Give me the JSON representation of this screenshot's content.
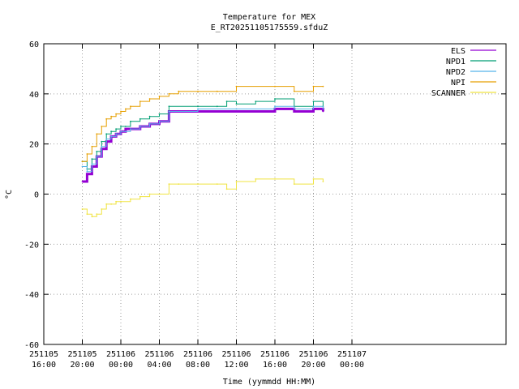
{
  "chart_data": {
    "type": "line",
    "title": "Temperature for MEX",
    "subtitle": "E_RT20251105175559.sfduZ",
    "xlabel": "Time (yymmdd HH:MM)",
    "ylabel": "°C",
    "ylim": [
      -60,
      60
    ],
    "yticks": [
      -60,
      -40,
      -20,
      0,
      20,
      40,
      60
    ],
    "xlim_hours": [
      16,
      64
    ],
    "xticks": [
      {
        "h": 16,
        "date": "251105",
        "time": "16:00"
      },
      {
        "h": 20,
        "date": "251105",
        "time": "20:00"
      },
      {
        "h": 24,
        "date": "251106",
        "time": "00:00"
      },
      {
        "h": 28,
        "date": "251106",
        "time": "04:00"
      },
      {
        "h": 32,
        "date": "251106",
        "time": "08:00"
      },
      {
        "h": 36,
        "date": "251106",
        "time": "12:00"
      },
      {
        "h": 40,
        "date": "251106",
        "time": "16:00"
      },
      {
        "h": 44,
        "date": "251106",
        "time": "20:00"
      },
      {
        "h": 48,
        "date": "251107",
        "time": "00:00"
      }
    ],
    "grid": true,
    "legend_position": "top-right",
    "series": [
      {
        "name": "ELS",
        "color": "#9400d3",
        "width": 3,
        "x": [
          "251105 20:00",
          "251105 20:30",
          "251105 21:00",
          "251105 21:30",
          "251105 22:00",
          "251105 22:30",
          "251105 23:00",
          "251105 23:30",
          "251106 00:00",
          "251106 00:30",
          "251106 01:00",
          "251106 02:00",
          "251106 03:00",
          "251106 04:00",
          "251106 05:00",
          "251106 08:00",
          "251106 12:00",
          "251106 16:00",
          "251106 18:00",
          "251106 20:00",
          "251106 21:00"
        ],
        "values": [
          5,
          8,
          11,
          15,
          18,
          21,
          23,
          24,
          25,
          26,
          26,
          27,
          28,
          29,
          33,
          33,
          33,
          34,
          33,
          34,
          33
        ]
      },
      {
        "name": "NPD1",
        "color": "#009e73",
        "width": 1,
        "x": [
          "251105 20:00",
          "251105 20:30",
          "251105 21:00",
          "251105 21:30",
          "251105 22:00",
          "251105 22:30",
          "251105 23:00",
          "251105 23:30",
          "251106 00:00",
          "251106 00:30",
          "251106 01:00",
          "251106 02:00",
          "251106 03:00",
          "251106 04:00",
          "251106 05:00",
          "251106 08:00",
          "251106 10:00",
          "251106 11:00",
          "251106 12:00",
          "251106 14:00",
          "251106 16:00",
          "251106 18:00",
          "251106 20:00",
          "251106 21:00"
        ],
        "values": [
          13,
          10,
          14,
          17,
          21,
          24,
          25,
          26,
          27,
          27,
          29,
          30,
          31,
          32,
          35,
          35,
          35,
          37,
          36,
          37,
          38,
          35,
          37,
          35
        ]
      },
      {
        "name": "NPD2",
        "color": "#56b4e9",
        "width": 1,
        "x": [
          "251105 20:00",
          "251105 20:30",
          "251105 21:00",
          "251105 21:30",
          "251105 22:00",
          "251105 22:30",
          "251105 23:00",
          "251105 23:30",
          "251106 00:00",
          "251106 00:30",
          "251106 01:00",
          "251106 02:00",
          "251106 03:00",
          "251106 04:00",
          "251106 05:00",
          "251106 08:00",
          "251106 12:00",
          "251106 16:00",
          "251106 18:00",
          "251106 20:00",
          "251106 21:00"
        ],
        "values": [
          11,
          9,
          12,
          15,
          19,
          22,
          23,
          24,
          25,
          25,
          26,
          27,
          28,
          29,
          33,
          34,
          34,
          35,
          34,
          35,
          34
        ]
      },
      {
        "name": "NPI",
        "color": "#e69f00",
        "width": 1,
        "x": [
          "251105 20:00",
          "251105 20:30",
          "251105 21:00",
          "251105 21:30",
          "251105 22:00",
          "251105 22:30",
          "251105 23:00",
          "251105 23:30",
          "251106 00:00",
          "251106 00:30",
          "251106 01:00",
          "251106 02:00",
          "251106 03:00",
          "251106 04:00",
          "251106 05:00",
          "251106 06:00",
          "251106 08:00",
          "251106 10:00",
          "251106 12:00",
          "251106 16:00",
          "251106 18:00",
          "251106 20:00",
          "251106 21:00"
        ],
        "values": [
          13,
          16,
          19,
          24,
          27,
          30,
          31,
          32,
          33,
          34,
          35,
          37,
          38,
          39,
          40,
          41,
          41,
          41,
          43,
          43,
          41,
          43,
          43
        ]
      },
      {
        "name": "SCANNER",
        "color": "#f0e442",
        "width": 1,
        "x": [
          "251105 20:00",
          "251105 20:30",
          "251105 21:00",
          "251105 21:30",
          "251105 22:00",
          "251105 22:30",
          "251105 23:00",
          "251105 23:30",
          "251106 00:00",
          "251106 01:00",
          "251106 02:00",
          "251106 03:00",
          "251106 04:00",
          "251106 05:00",
          "251106 06:00",
          "251106 08:00",
          "251106 10:00",
          "251106 11:00",
          "251106 12:00",
          "251106 14:00",
          "251106 16:00",
          "251106 18:00",
          "251106 20:00",
          "251106 21:00"
        ],
        "values": [
          -6,
          -8,
          -9,
          -8,
          -6,
          -4,
          -4,
          -3,
          -3,
          -2,
          -1,
          0,
          0,
          4,
          4,
          4,
          4,
          2,
          5,
          6,
          6,
          4,
          6,
          5
        ]
      }
    ]
  }
}
